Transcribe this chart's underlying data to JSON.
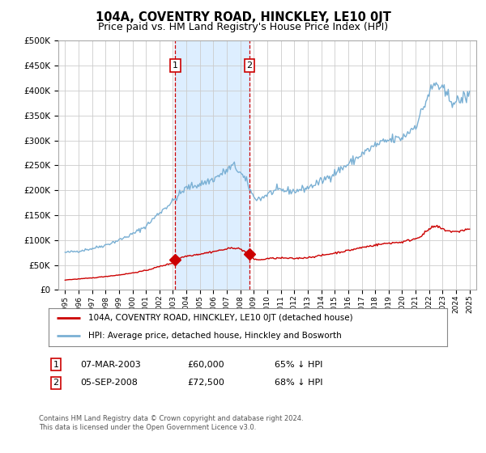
{
  "title": "104A, COVENTRY ROAD, HINCKLEY, LE10 0JT",
  "subtitle": "Price paid vs. HM Land Registry's House Price Index (HPI)",
  "title_fontsize": 10.5,
  "subtitle_fontsize": 9,
  "sale1_date": "07-MAR-2003",
  "sale1_price": 60000,
  "sale1_label": "65% ↓ HPI",
  "sale2_date": "05-SEP-2008",
  "sale2_price": 72500,
  "sale2_label": "68% ↓ HPI",
  "sale1_x": 2003.18,
  "sale2_x": 2008.67,
  "legend_label1": "104A, COVENTRY ROAD, HINCKLEY, LE10 0JT (detached house)",
  "legend_label2": "HPI: Average price, detached house, Hinckley and Bosworth",
  "footnote1": "Contains HM Land Registry data © Crown copyright and database right 2024.",
  "footnote2": "This data is licensed under the Open Government Licence v3.0.",
  "ylim": [
    0,
    500000
  ],
  "xlim": [
    1994.5,
    2025.5
  ],
  "red_color": "#cc0000",
  "blue_color": "#7ab0d4",
  "shaded_color": "#ddeeff",
  "dashed_color": "#cc0000",
  "background_color": "#ffffff",
  "grid_color": "#cccccc"
}
